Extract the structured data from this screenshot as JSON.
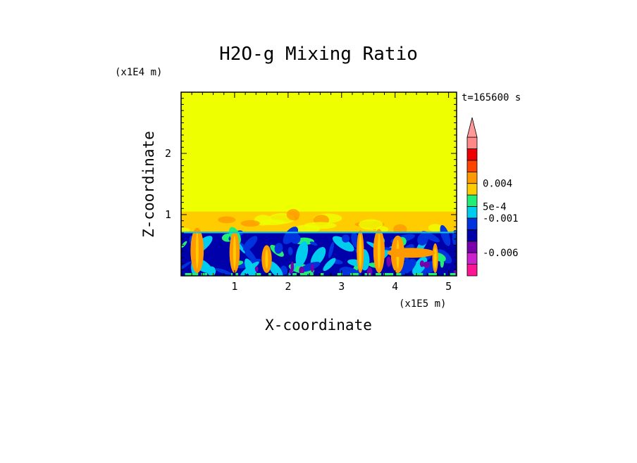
{
  "chart_data": {
    "type": "heatmap",
    "title": "H2O-g Mixing Ratio",
    "xlabel": "X-coordinate",
    "ylabel": "Z-coordinate",
    "x_multiplier": "(x1E5 m)",
    "y_multiplier": "(x1E4 m)",
    "time_label": "t=165600 s",
    "xlim": [
      0,
      5.15
    ],
    "ylim": [
      0,
      3.0
    ],
    "x_ticks": [
      "1",
      "2",
      "3",
      "4",
      "5"
    ],
    "x_tick_values": [
      1,
      2,
      3,
      4,
      5
    ],
    "y_ticks": [
      "1",
      "2"
    ],
    "y_tick_values": [
      1,
      2
    ],
    "boundary_layer_top": 0.72,
    "transition_layer_top": 1.05,
    "colorbar": {
      "labels": [
        {
          "text": "0.004",
          "level": 8
        },
        {
          "text": "5e-4",
          "level": 6
        },
        {
          "text": "-0.001",
          "level": 5
        },
        {
          "text": "-0.006",
          "level": 2
        }
      ],
      "colors": [
        "#ff1493",
        "#cc22cc",
        "#7700aa",
        "#0000aa",
        "#0033dd",
        "#00ccee",
        "#22ee77",
        "#ffcc00",
        "#ff9900",
        "#ff4400",
        "#ee0000",
        "#ff8888"
      ]
    },
    "colors": {
      "upper": "#eeff00",
      "transition": "#ffcc00",
      "plume": "#ff9900",
      "deep_blue": "#0000aa",
      "blue": "#0033dd",
      "cyan": "#00ccee",
      "green": "#22ee77",
      "purple": "#7700aa"
    }
  }
}
